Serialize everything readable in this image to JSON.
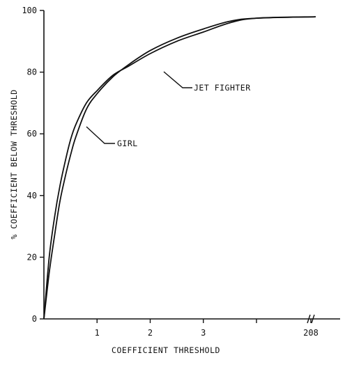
{
  "chart_data": {
    "type": "line",
    "title": "",
    "xlabel": "COEFFICIENT THRESHOLD",
    "ylabel": "% COEFFICIENT BELOW THRESHOLD",
    "x_axis_break_label": "208",
    "xlim": [
      0,
      4.2
    ],
    "ylim": [
      0,
      100
    ],
    "x_ticks": [
      1,
      2,
      3,
      4
    ],
    "x_tick_labels": [
      "1",
      "2",
      "3",
      ""
    ],
    "y_ticks": [
      0,
      20,
      40,
      60,
      80,
      100
    ],
    "y_tick_labels": [
      "0",
      "20",
      "40",
      "60",
      "80",
      "100"
    ],
    "grid": false,
    "series": [
      {
        "name": "JET FIGHTER",
        "x": [
          0,
          0.1,
          0.2,
          0.3,
          0.4,
          0.5,
          0.6,
          0.8,
          1.0,
          1.3,
          1.6,
          2.0,
          2.5,
          3.0,
          3.5,
          4.0
        ],
        "y": [
          0,
          20,
          33,
          43,
          51,
          58,
          63,
          70,
          74,
          79,
          82,
          86,
          90,
          93,
          96,
          97.5
        ]
      },
      {
        "name": "GIRL",
        "x": [
          0,
          0.1,
          0.2,
          0.3,
          0.4,
          0.5,
          0.6,
          0.8,
          1.0,
          1.3,
          1.6,
          2.0,
          2.5,
          3.0,
          3.5,
          4.0
        ],
        "y": [
          0,
          15,
          27,
          38,
          46,
          53,
          59,
          68,
          73,
          78.5,
          82.5,
          87,
          91,
          94,
          96.5,
          97.5
        ]
      }
    ],
    "annotations": [
      {
        "text": "JET FIGHTER",
        "series": "JET FIGHTER"
      },
      {
        "text": "GIRL",
        "series": "GIRL"
      }
    ]
  }
}
